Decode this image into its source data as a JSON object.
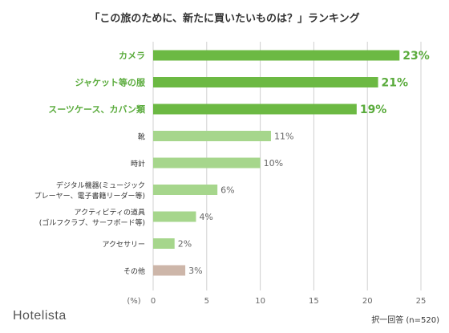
{
  "chart_data": {
    "type": "bar",
    "orientation": "horizontal",
    "title": "「この旅のために、新たに買いたいものは？」ランキング",
    "categories": [
      [
        "カメラ"
      ],
      [
        "ジャケット等の服"
      ],
      [
        "スーツケース、カバン類"
      ],
      [
        "靴"
      ],
      [
        "時計"
      ],
      [
        "デジタル機器(ミュージック",
        "プレーヤー、電子書籍リーダー等)"
      ],
      [
        "アクティビティの道具",
        "(ゴルフクラブ、サーフボード等)"
      ],
      [
        "アクセサリー"
      ],
      [
        "その他"
      ]
    ],
    "values": [
      23,
      21,
      19,
      11,
      10,
      6,
      4,
      2,
      3
    ],
    "value_labels": [
      "23%",
      "21%",
      "19%",
      "11%",
      "10%",
      "6%",
      "4%",
      "2%",
      "3%"
    ],
    "highlight_top": 3,
    "x_unit_label": "(%)",
    "xlim": [
      0,
      25
    ],
    "xticks": [
      0,
      5,
      10,
      15,
      20,
      25
    ],
    "grid": true,
    "colors": {
      "top": "#6cb943",
      "normal": "#a6d68c",
      "other": "#cdb6a9",
      "top_text": "#5aab3c",
      "grid": "#d0d0d0"
    }
  },
  "footer": {
    "brand": "Hotelista",
    "note": "択一回答 (n=520)"
  }
}
